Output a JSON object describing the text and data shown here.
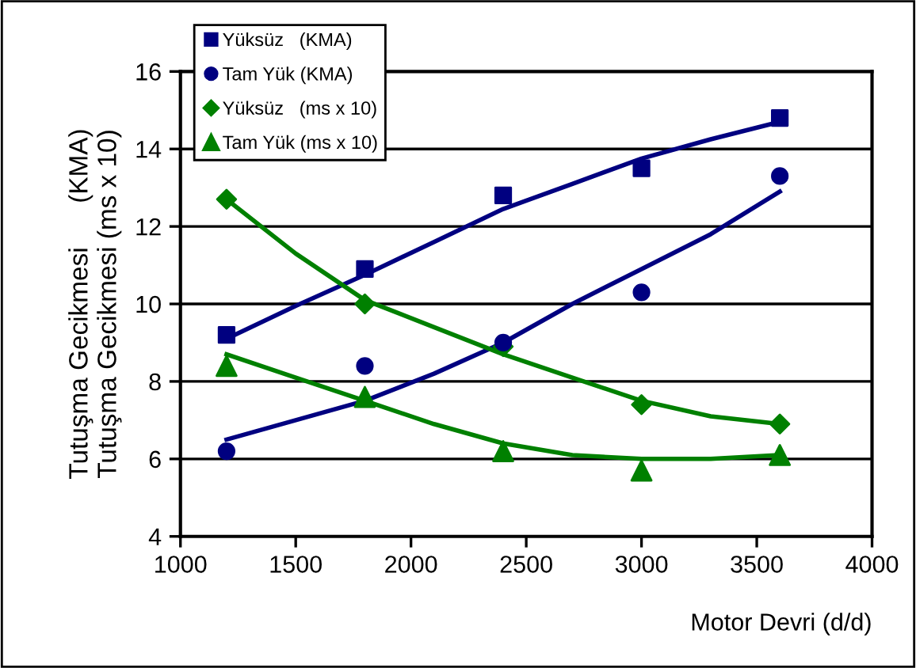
{
  "chart_data": {
    "type": "scatter",
    "xlabel": "Motor Devri (d/d)",
    "ylabel": "Tutuşma Gecikmesi      (KMA)\nTutuşma Gecikmesi (ms x 10)",
    "x": [
      1200,
      1800,
      2400,
      3000,
      3600
    ],
    "series": [
      {
        "name": "Yüksüz   (KMA)",
        "color": "#000080",
        "marker": "square",
        "values": [
          9.2,
          10.9,
          12.8,
          13.5,
          14.8
        ]
      },
      {
        "name": "Tam Yük (KMA)",
        "color": "#000080",
        "marker": "circle",
        "values": [
          6.2,
          8.4,
          9.0,
          10.3,
          13.3
        ]
      },
      {
        "name": "Yüksüz   (ms x 10)",
        "color": "#008000",
        "marker": "diamond",
        "values": [
          12.7,
          10.0,
          8.9,
          7.4,
          6.9
        ]
      },
      {
        "name": "Tam Yük (ms x 10)",
        "color": "#008000",
        "marker": "triangle",
        "values": [
          8.4,
          7.6,
          6.2,
          5.7,
          6.1
        ]
      },
      {
        "type": "line",
        "color": "#000080",
        "x": [
          1200,
          1500,
          1800,
          2100,
          2400,
          2700,
          3000,
          3300,
          3600
        ],
        "values": [
          9.1,
          9.95,
          10.75,
          11.6,
          12.45,
          13.1,
          13.75,
          14.25,
          14.7
        ]
      },
      {
        "type": "line",
        "color": "#000080",
        "x": [
          1200,
          1500,
          1800,
          2100,
          2400,
          2700,
          3000,
          3300,
          3600
        ],
        "values": [
          6.5,
          7.0,
          7.5,
          8.2,
          9.0,
          10.0,
          10.9,
          11.8,
          12.9
        ]
      },
      {
        "type": "line",
        "color": "#008000",
        "x": [
          1200,
          1500,
          1800,
          2100,
          2400,
          2700,
          3000,
          3300,
          3600
        ],
        "values": [
          12.7,
          11.3,
          10.1,
          9.4,
          8.7,
          8.1,
          7.5,
          7.1,
          6.9
        ]
      },
      {
        "type": "line",
        "color": "#008000",
        "x": [
          1200,
          1500,
          1800,
          2100,
          2400,
          2700,
          3000,
          3300,
          3600
        ],
        "values": [
          8.7,
          8.1,
          7.5,
          6.9,
          6.4,
          6.1,
          6.0,
          6.0,
          6.1
        ]
      }
    ],
    "xlim": [
      1000,
      4000
    ],
    "xticks": [
      1000,
      1500,
      2000,
      2500,
      3000,
      3500,
      4000
    ],
    "ylim": [
      4,
      16
    ],
    "yticks": [
      4,
      6,
      8,
      10,
      12,
      14,
      16
    ],
    "grid": "y",
    "legend": "top left"
  }
}
